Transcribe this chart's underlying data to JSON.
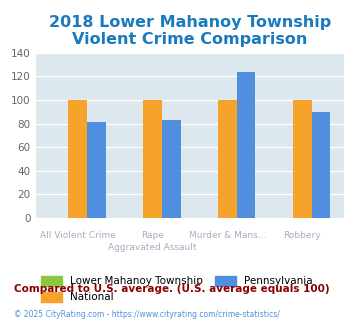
{
  "title": "2018 Lower Mahanoy Township\nViolent Crime Comparison",
  "title_color": "#1a7abf",
  "title_fontsize": 11.5,
  "series": [
    {
      "label": "Lower Mahanoy Township",
      "color": "#8dc63f",
      "values": [
        0,
        0,
        0,
        0
      ]
    },
    {
      "label": "National",
      "color": "#f5a32a",
      "values": [
        100,
        100,
        100,
        100
      ]
    },
    {
      "label": "Pennsylvania",
      "color": "#4f8fdd",
      "values": [
        81,
        83,
        124,
        90
      ]
    }
  ],
  "cat4_top": [
    "",
    "Rape",
    "Murder & Mans...",
    ""
  ],
  "cat4_bot": [
    "All Violent Crime",
    "Aggravated Assault",
    "",
    "Robbery"
  ],
  "ylim": [
    0,
    140
  ],
  "yticks": [
    0,
    20,
    40,
    60,
    80,
    100,
    120,
    140
  ],
  "fig_bg": "#ffffff",
  "plot_bg": "#dce8ee",
  "grid_color": "#ffffff",
  "footnote": "Compared to U.S. average. (U.S. average equals 100)",
  "footnote_color": "#8b0000",
  "copyright": "© 2025 CityRating.com - https://www.cityrating.com/crime-statistics/",
  "copyright_color": "#4f8fdd",
  "legend_labels": [
    "Lower Mahanoy Township",
    "National",
    "Pennsylvania"
  ],
  "legend_colors": [
    "#8dc63f",
    "#f5a32a",
    "#4f8fdd"
  ],
  "xtick_color": "#b0a8c0",
  "ytick_color": "#666666"
}
